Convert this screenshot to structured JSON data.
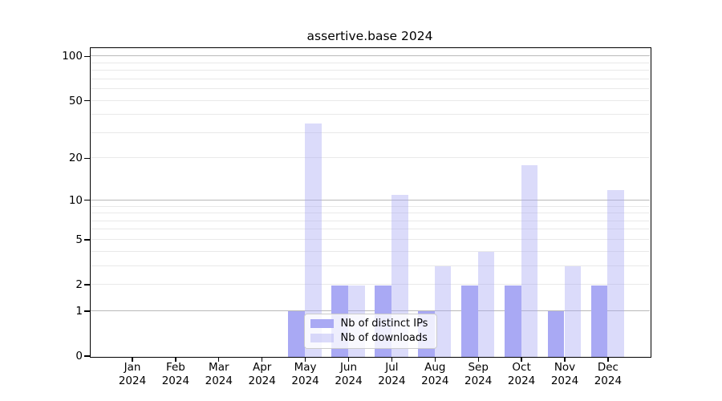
{
  "figure": {
    "title": "assertive.base 2024"
  },
  "chart_data": {
    "type": "bar",
    "title": "assertive.base 2024",
    "categories": [
      "Jan",
      "Feb",
      "Mar",
      "Apr",
      "May",
      "Jun",
      "Jul",
      "Aug",
      "Sep",
      "Oct",
      "Nov",
      "Dec"
    ],
    "x_year_label": "2024",
    "series": [
      {
        "name": "Nb of distinct IPs",
        "color": "#a9a9f4",
        "opacity": 1,
        "values": [
          0,
          0,
          0,
          0,
          1,
          2,
          2,
          1,
          2,
          2,
          1,
          2
        ]
      },
      {
        "name": "Nb of downloads",
        "color": "#a9a9f4",
        "opacity": 0.42,
        "values": [
          0,
          0,
          0,
          0,
          35,
          2,
          11,
          3,
          4,
          18,
          3,
          12
        ]
      }
    ],
    "ylabel": "",
    "xlabel": "",
    "yscale": "log1p",
    "ylim": [
      0,
      114
    ],
    "yticks": [
      0,
      1,
      2,
      5,
      10,
      20,
      50,
      100
    ],
    "ytick_labels": [
      "0",
      "1",
      "2",
      "5",
      "10",
      "20",
      "50",
      "100"
    ],
    "major_gridlines": [
      1,
      10,
      100
    ],
    "minor_gridlines": [
      2,
      3,
      4,
      5,
      6,
      7,
      8,
      9,
      20,
      30,
      40,
      50,
      60,
      70,
      80,
      90
    ],
    "grid": {
      "major_color": "#b9b9b9",
      "minor_color": "#e9e9e9"
    },
    "legend_position": "inside-bottom-center"
  }
}
